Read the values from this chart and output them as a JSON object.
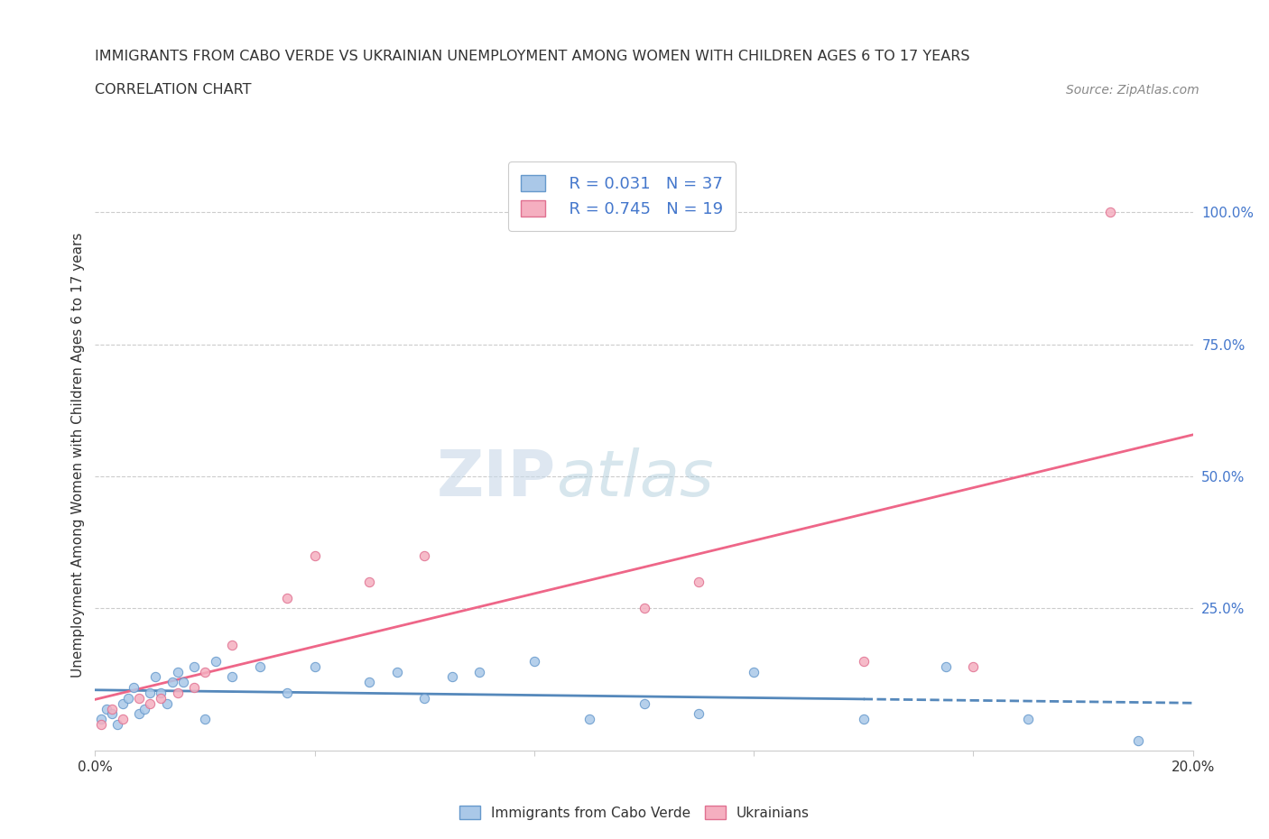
{
  "title_line1": "IMMIGRANTS FROM CABO VERDE VS UKRAINIAN UNEMPLOYMENT AMONG WOMEN WITH CHILDREN AGES 6 TO 17 YEARS",
  "title_line2": "CORRELATION CHART",
  "source_text": "Source: ZipAtlas.com",
  "ylabel": "Unemployment Among Women with Children Ages 6 to 17 years",
  "xlim": [
    0.0,
    0.2
  ],
  "ylim": [
    -0.02,
    1.1
  ],
  "x_ticks": [
    0.0,
    0.04,
    0.08,
    0.12,
    0.16,
    0.2
  ],
  "y_ticks_right": [
    0.0,
    0.25,
    0.5,
    0.75,
    1.0
  ],
  "y_tick_labels_right": [
    "",
    "25.0%",
    "50.0%",
    "75.0%",
    "100.0%"
  ],
  "cabo_verde_color": "#aac8e8",
  "ukrainians_color": "#f5afc0",
  "cabo_verde_edge_color": "#6699cc",
  "ukrainians_edge_color": "#e07090",
  "trend_cabo_color": "#5588bb",
  "trend_ukraine_color": "#ee6688",
  "watermark_zip": "ZIP",
  "watermark_atlas": "atlas",
  "legend_r_cabo": "R = 0.031",
  "legend_n_cabo": "N = 37",
  "legend_r_ukraine": "R = 0.745",
  "legend_n_ukraine": "N = 19",
  "cabo_verde_x": [
    0.001,
    0.002,
    0.003,
    0.004,
    0.005,
    0.006,
    0.007,
    0.008,
    0.009,
    0.01,
    0.011,
    0.012,
    0.013,
    0.014,
    0.015,
    0.016,
    0.018,
    0.02,
    0.022,
    0.025,
    0.03,
    0.035,
    0.04,
    0.05,
    0.055,
    0.06,
    0.065,
    0.07,
    0.08,
    0.09,
    0.1,
    0.11,
    0.12,
    0.14,
    0.155,
    0.17,
    0.19
  ],
  "cabo_verde_y": [
    0.04,
    0.06,
    0.05,
    0.03,
    0.07,
    0.08,
    0.1,
    0.05,
    0.06,
    0.09,
    0.12,
    0.09,
    0.07,
    0.11,
    0.13,
    0.11,
    0.14,
    0.04,
    0.15,
    0.12,
    0.14,
    0.09,
    0.14,
    0.11,
    0.13,
    0.08,
    0.12,
    0.13,
    0.15,
    0.04,
    0.07,
    0.05,
    0.13,
    0.04,
    0.14,
    0.04,
    0.0
  ],
  "ukrainians_x": [
    0.001,
    0.003,
    0.005,
    0.008,
    0.01,
    0.012,
    0.015,
    0.018,
    0.02,
    0.025,
    0.035,
    0.04,
    0.05,
    0.06,
    0.1,
    0.11,
    0.14,
    0.16,
    0.185
  ],
  "ukrainians_y": [
    0.03,
    0.06,
    0.04,
    0.08,
    0.07,
    0.08,
    0.09,
    0.1,
    0.13,
    0.18,
    0.27,
    0.35,
    0.3,
    0.35,
    0.25,
    0.3,
    0.15,
    0.14,
    1.0
  ],
  "background_color": "#ffffff",
  "grid_color": "#cccccc",
  "title_color": "#333333",
  "right_label_color": "#4477cc",
  "marker_size": 55
}
